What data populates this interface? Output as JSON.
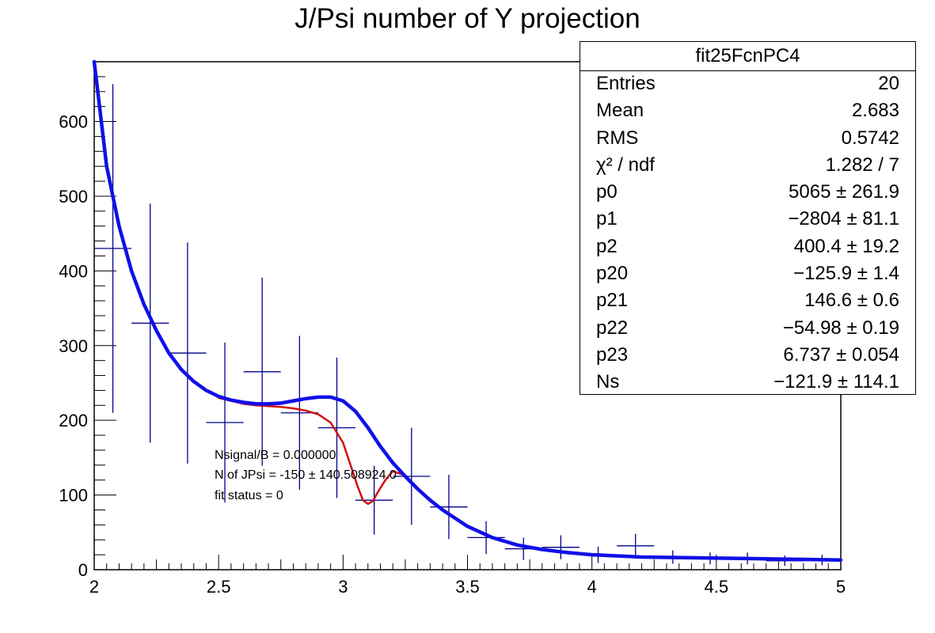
{
  "chart_data": {
    "type": "scatter",
    "title": "J/Psi number of Y projection",
    "xlabel": "",
    "ylabel": "",
    "xlim": [
      2,
      5
    ],
    "ylim": [
      0,
      680
    ],
    "x_ticks": [
      "2",
      "2.5",
      "3",
      "3.5",
      "4",
      "4.5",
      "5"
    ],
    "y_ticks": [
      "0",
      "100",
      "200",
      "300",
      "400",
      "500",
      "600"
    ],
    "grid": false,
    "histogram_points": [
      {
        "x": 2.075,
        "y": 430,
        "xerr": 0.075,
        "yerr": 220
      },
      {
        "x": 2.225,
        "y": 330,
        "xerr": 0.075,
        "yerr": 160
      },
      {
        "x": 2.375,
        "y": 290,
        "xerr": 0.075,
        "yerr": 148
      },
      {
        "x": 2.525,
        "y": 197,
        "xerr": 0.075,
        "yerr": 107
      },
      {
        "x": 2.675,
        "y": 265,
        "xerr": 0.075,
        "yerr": 126
      },
      {
        "x": 2.825,
        "y": 210,
        "xerr": 0.075,
        "yerr": 103
      },
      {
        "x": 2.975,
        "y": 190,
        "xerr": 0.075,
        "yerr": 94
      },
      {
        "x": 3.125,
        "y": 93,
        "xerr": 0.075,
        "yerr": 46
      },
      {
        "x": 3.275,
        "y": 125,
        "xerr": 0.075,
        "yerr": 65
      },
      {
        "x": 3.425,
        "y": 84,
        "xerr": 0.075,
        "yerr": 43
      },
      {
        "x": 3.575,
        "y": 43,
        "xerr": 0.075,
        "yerr": 22
      },
      {
        "x": 3.725,
        "y": 28,
        "xerr": 0.075,
        "yerr": 15
      },
      {
        "x": 3.875,
        "y": 30,
        "xerr": 0.075,
        "yerr": 16
      },
      {
        "x": 4.025,
        "y": 20,
        "xerr": 0.075,
        "yerr": 11
      },
      {
        "x": 4.175,
        "y": 32,
        "xerr": 0.075,
        "yerr": 16
      },
      {
        "x": 4.325,
        "y": 17,
        "xerr": 0.075,
        "yerr": 9
      },
      {
        "x": 4.475,
        "y": 15,
        "xerr": 0.075,
        "yerr": 8
      },
      {
        "x": 4.625,
        "y": 15,
        "xerr": 0.075,
        "yerr": 8
      },
      {
        "x": 4.775,
        "y": 12,
        "xerr": 0.075,
        "yerr": 7
      },
      {
        "x": 4.925,
        "y": 13,
        "xerr": 0.075,
        "yerr": 7
      }
    ],
    "series": [
      {
        "color": "#1010e8",
        "x": [
          2.0,
          2.05,
          2.1,
          2.15,
          2.2,
          2.25,
          2.3,
          2.35,
          2.4,
          2.45,
          2.5,
          2.55,
          2.6,
          2.65,
          2.7,
          2.75,
          2.8,
          2.85,
          2.9,
          2.95,
          3.0,
          3.05,
          3.1,
          3.15,
          3.2,
          3.25,
          3.3,
          3.35,
          3.4,
          3.5,
          3.6,
          3.7,
          3.8,
          3.9,
          4.0,
          4.2,
          4.4,
          4.6,
          4.8,
          5.0
        ],
        "values": [
          690,
          540,
          460,
          400,
          355,
          320,
          290,
          268,
          252,
          240,
          232,
          227,
          224,
          222,
          222,
          223,
          226,
          229,
          231,
          231,
          226,
          212,
          190,
          165,
          143,
          125,
          108,
          93,
          80,
          58,
          43,
          33,
          27,
          23,
          20,
          17,
          16,
          15,
          14,
          13
        ]
      },
      {
        "color": "#d01010",
        "x": [
          2.5,
          2.55,
          2.6,
          2.65,
          2.7,
          2.75,
          2.8,
          2.85,
          2.9,
          2.95,
          3.0,
          3.03,
          3.06,
          3.08,
          3.1,
          3.12,
          3.14,
          3.17,
          3.2,
          3.25
        ],
        "values": [
          230,
          226,
          222,
          220,
          219,
          218,
          216,
          213,
          208,
          197,
          170,
          140,
          110,
          93,
          88,
          92,
          104,
          120,
          132,
          126
        ]
      }
    ],
    "annotations": [
      "Nsignal/B = 0.000000",
      "N of JPsi = -150 ± 140.508924.0",
      "fit status = 0"
    ]
  },
  "stats_box": {
    "title": "fit25FcnPC4",
    "rows": [
      {
        "label": "Entries",
        "value": "20"
      },
      {
        "label": "Mean",
        "value": "2.683"
      },
      {
        "label": "RMS",
        "value": "0.5742"
      },
      {
        "label": "χ² / ndf",
        "value": "1.282 / 7"
      },
      {
        "label": "p0",
        "value": "5065 ± 261.9"
      },
      {
        "label": "p1",
        "value": "−2804 ± 81.1"
      },
      {
        "label": "p2",
        "value": "400.4 ± 19.2"
      },
      {
        "label": "p20",
        "value": "−125.9 ± 1.4"
      },
      {
        "label": "p21",
        "value": "146.6 ± 0.6"
      },
      {
        "label": "p22",
        "value": "−54.98 ± 0.19"
      },
      {
        "label": "p23",
        "value": "6.737 ± 0.054"
      },
      {
        "label": "Ns",
        "value": "−121.9 ± 114.1"
      }
    ]
  }
}
